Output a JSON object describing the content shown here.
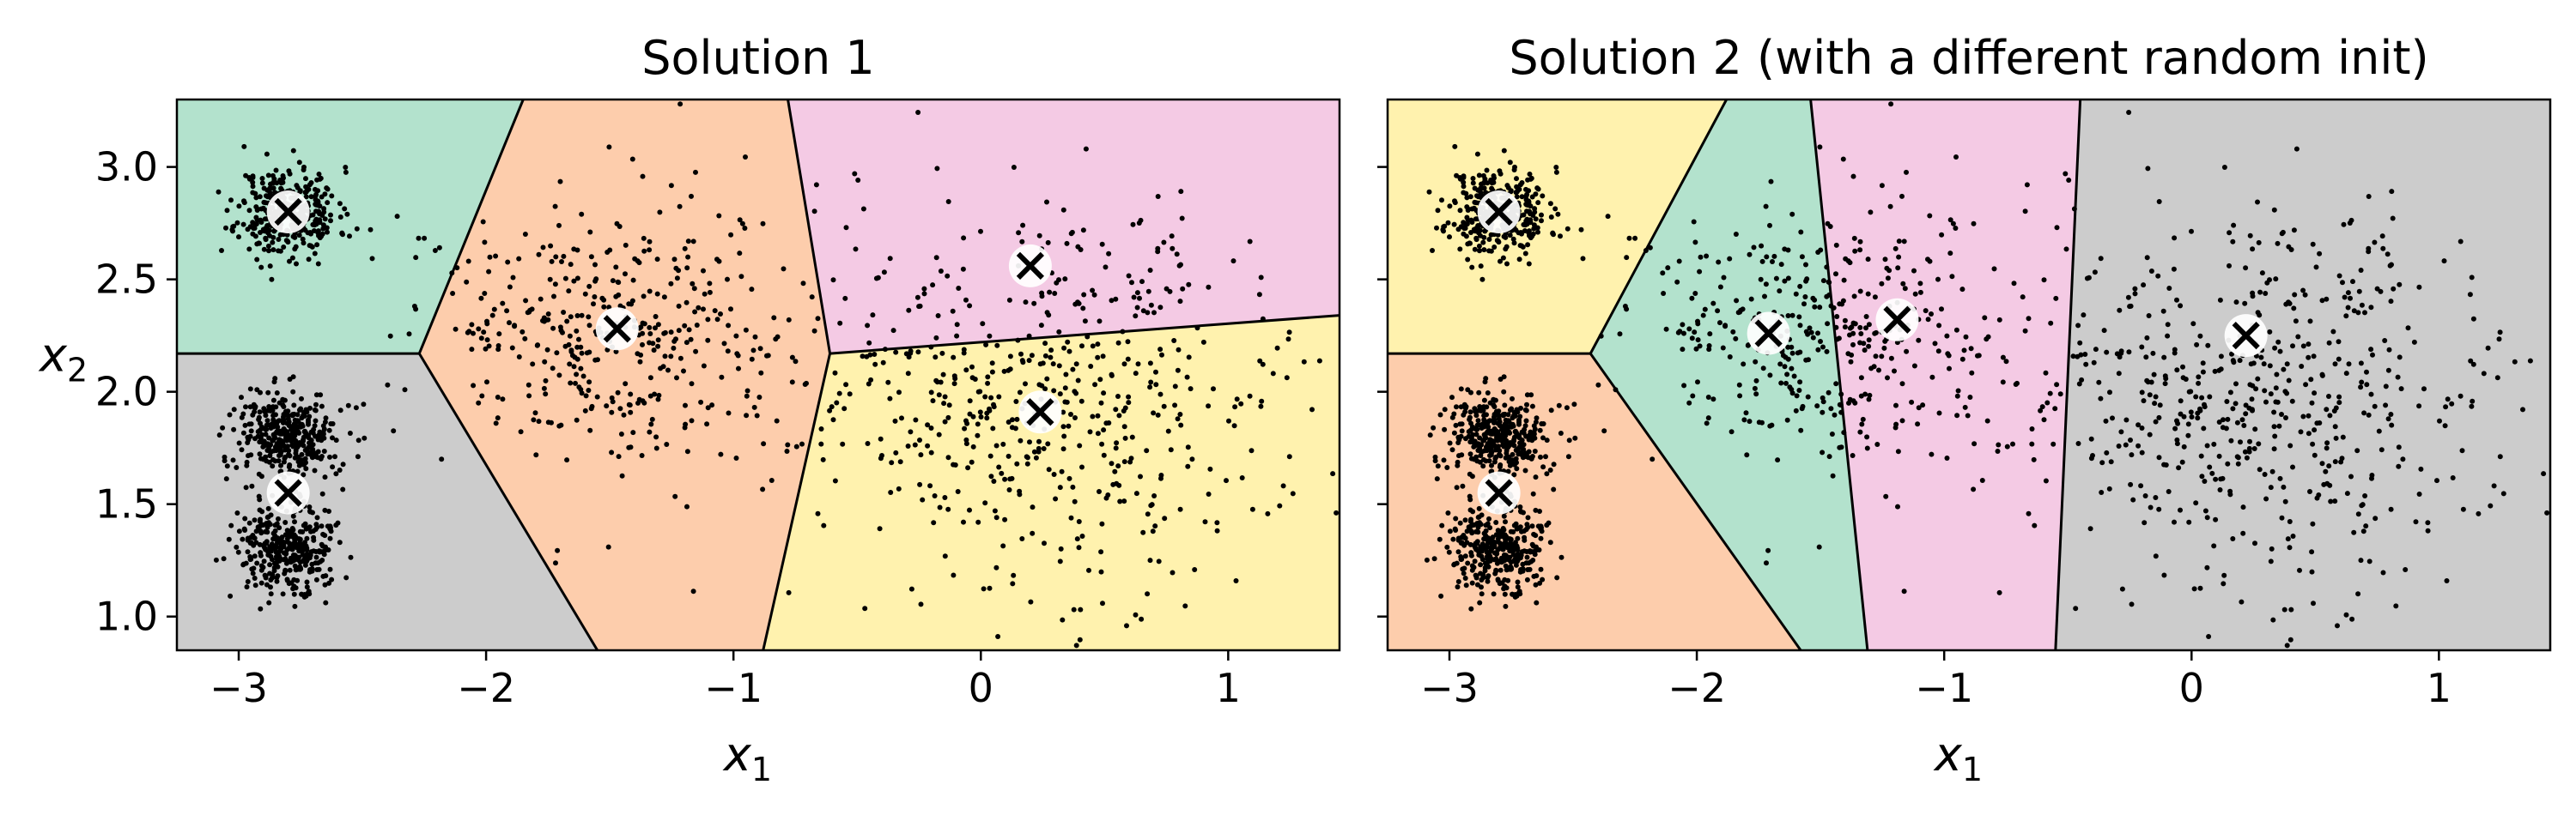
{
  "chart_data": [
    {
      "type": "scatter",
      "title": "Solution 1",
      "xlabel": "x",
      "xlabel_sub": "1",
      "ylabel": "x",
      "ylabel_sub": "2",
      "xlim": [
        -3.25,
        1.45
      ],
      "ylim": [
        0.85,
        3.3
      ],
      "xticks": [
        -3,
        -2,
        -1,
        0,
        1
      ],
      "xtick_labels": [
        "−3",
        "−2",
        "−1",
        "0",
        "1"
      ],
      "yticks": [
        1.0,
        1.5,
        2.0,
        2.5,
        3.0
      ],
      "ytick_labels": [
        "1.0",
        "1.5",
        "2.0",
        "2.5",
        "3.0"
      ],
      "show_yticklabels": true,
      "regions": [
        {
          "color": "#b3e2cd",
          "points": [
            [
              -3.25,
              3.3
            ],
            [
              -1.85,
              3.3
            ],
            [
              -2.27,
              2.17
            ],
            [
              -3.25,
              2.17
            ]
          ]
        },
        {
          "color": "#cccccc",
          "points": [
            [
              -3.25,
              2.17
            ],
            [
              -2.27,
              2.17
            ],
            [
              -1.55,
              0.85
            ],
            [
              -3.25,
              0.85
            ]
          ]
        },
        {
          "color": "#fdcdac",
          "points": [
            [
              -1.85,
              3.3
            ],
            [
              -0.78,
              3.3
            ],
            [
              -0.61,
              2.17
            ],
            [
              -0.88,
              0.85
            ],
            [
              -1.55,
              0.85
            ],
            [
              -2.27,
              2.17
            ]
          ]
        },
        {
          "color": "#f4cae4",
          "points": [
            [
              -0.78,
              3.3
            ],
            [
              1.45,
              3.3
            ],
            [
              1.45,
              2.34
            ],
            [
              -0.61,
              2.17
            ]
          ]
        },
        {
          "color": "#fff2ae",
          "points": [
            [
              -0.61,
              2.17
            ],
            [
              1.45,
              2.34
            ],
            [
              1.45,
              0.85
            ],
            [
              -0.88,
              0.85
            ]
          ]
        }
      ],
      "boundaries": [
        [
          [
            -3.25,
            2.17
          ],
          [
            -2.27,
            2.17
          ]
        ],
        [
          [
            -2.27,
            2.17
          ],
          [
            -1.85,
            3.3
          ]
        ],
        [
          [
            -2.27,
            2.17
          ],
          [
            -1.55,
            0.85
          ]
        ],
        [
          [
            -0.78,
            3.3
          ],
          [
            -0.61,
            2.17
          ]
        ],
        [
          [
            -0.61,
            2.17
          ],
          [
            -0.88,
            0.85
          ]
        ],
        [
          [
            -0.61,
            2.17
          ],
          [
            1.45,
            2.34
          ]
        ]
      ],
      "blobs": [
        {
          "center": [
            -2.8,
            2.8
          ],
          "spread": [
            0.1,
            0.1
          ],
          "n": 350,
          "seed": 11
        },
        {
          "center": [
            -2.8,
            1.8
          ],
          "spread": [
            0.1,
            0.1
          ],
          "n": 350,
          "seed": 12
        },
        {
          "center": [
            -2.8,
            1.3
          ],
          "spread": [
            0.1,
            0.1
          ],
          "n": 350,
          "seed": 13
        },
        {
          "center": [
            -1.46,
            2.28
          ],
          "spread": [
            0.42,
            0.3
          ],
          "n": 420,
          "seed": 14
        },
        {
          "center": [
            0.25,
            2.0
          ],
          "spread": [
            0.5,
            0.42
          ],
          "n": 560,
          "seed": 15
        }
      ],
      "centroids": [
        [
          -2.8,
          2.8
        ],
        [
          -2.8,
          1.55
        ],
        [
          -1.47,
          2.28
        ],
        [
          0.2,
          2.56
        ],
        [
          0.24,
          1.91
        ]
      ]
    },
    {
      "type": "scatter",
      "title": "Solution 2 (with a different random init)",
      "xlabel": "x",
      "xlabel_sub": "1",
      "ylabel": "",
      "ylabel_sub": "",
      "xlim": [
        -3.25,
        1.45
      ],
      "ylim": [
        0.85,
        3.3
      ],
      "xticks": [
        -3,
        -2,
        -1,
        0,
        1
      ],
      "xtick_labels": [
        "−3",
        "−2",
        "−1",
        "0",
        "1"
      ],
      "yticks": [
        1.0,
        1.5,
        2.0,
        2.5,
        3.0
      ],
      "ytick_labels": [
        "1.0",
        "1.5",
        "2.0",
        "2.5",
        "3.0"
      ],
      "show_yticklabels": false,
      "regions": [
        {
          "color": "#fff2ae",
          "points": [
            [
              -3.25,
              3.3
            ],
            [
              -1.88,
              3.3
            ],
            [
              -2.43,
              2.17
            ],
            [
              -3.25,
              2.17
            ]
          ]
        },
        {
          "color": "#fdcdac",
          "points": [
            [
              -3.25,
              2.17
            ],
            [
              -2.43,
              2.17
            ],
            [
              -1.58,
              0.85
            ],
            [
              -3.25,
              0.85
            ]
          ]
        },
        {
          "color": "#b3e2cd",
          "points": [
            [
              -1.88,
              3.3
            ],
            [
              -1.54,
              3.3
            ],
            [
              -1.31,
              0.85
            ],
            [
              -1.58,
              0.85
            ],
            [
              -2.43,
              2.17
            ]
          ]
        },
        {
          "color": "#f4cae4",
          "points": [
            [
              -1.54,
              3.3
            ],
            [
              -0.45,
              3.3
            ],
            [
              -0.55,
              0.85
            ],
            [
              -1.31,
              0.85
            ]
          ]
        },
        {
          "color": "#cccccc",
          "points": [
            [
              -0.45,
              3.3
            ],
            [
              1.45,
              3.3
            ],
            [
              1.45,
              0.85
            ],
            [
              -0.55,
              0.85
            ]
          ]
        }
      ],
      "boundaries": [
        [
          [
            -3.25,
            2.17
          ],
          [
            -2.43,
            2.17
          ]
        ],
        [
          [
            -2.43,
            2.17
          ],
          [
            -1.88,
            3.3
          ]
        ],
        [
          [
            -2.43,
            2.17
          ],
          [
            -1.58,
            0.85
          ]
        ],
        [
          [
            -1.54,
            3.3
          ],
          [
            -1.31,
            0.85
          ]
        ],
        [
          [
            -0.45,
            3.3
          ],
          [
            -0.55,
            0.85
          ]
        ]
      ],
      "blobs": [
        {
          "center": [
            -2.8,
            2.8
          ],
          "spread": [
            0.1,
            0.1
          ],
          "n": 350,
          "seed": 11
        },
        {
          "center": [
            -2.8,
            1.8
          ],
          "spread": [
            0.1,
            0.1
          ],
          "n": 350,
          "seed": 12
        },
        {
          "center": [
            -2.8,
            1.3
          ],
          "spread": [
            0.1,
            0.1
          ],
          "n": 350,
          "seed": 13
        },
        {
          "center": [
            -1.46,
            2.28
          ],
          "spread": [
            0.42,
            0.3
          ],
          "n": 420,
          "seed": 14
        },
        {
          "center": [
            0.25,
            2.0
          ],
          "spread": [
            0.5,
            0.42
          ],
          "n": 560,
          "seed": 15
        }
      ],
      "centroids": [
        [
          -2.8,
          2.8
        ],
        [
          -2.8,
          1.55
        ],
        [
          -1.71,
          2.26
        ],
        [
          -1.19,
          2.32
        ],
        [
          0.22,
          2.25
        ]
      ]
    }
  ]
}
